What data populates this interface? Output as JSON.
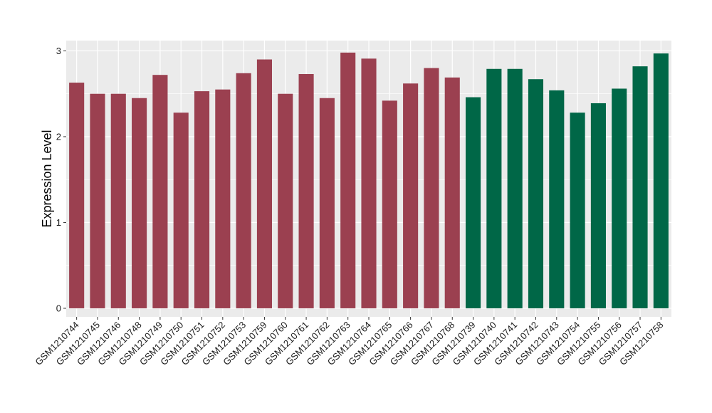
{
  "chart_data": {
    "type": "bar",
    "ylabel": "Expression Level",
    "xlabel": "",
    "ylim": [
      -0.1,
      3.12
    ],
    "yticks": [
      0,
      1,
      2,
      3
    ],
    "grid": true,
    "colors": {
      "group_a": "#9b4050",
      "group_b": "#006747",
      "panel": "#ebebeb",
      "grid": "#ffffff"
    },
    "categories": [
      "GSM1210744",
      "GSM1210745",
      "GSM1210746",
      "GSM1210748",
      "GSM1210749",
      "GSM1210750",
      "GSM1210751",
      "GSM1210752",
      "GSM1210753",
      "GSM1210759",
      "GSM1210760",
      "GSM1210761",
      "GSM1210762",
      "GSM1210763",
      "GSM1210764",
      "GSM1210765",
      "GSM1210766",
      "GSM1210767",
      "GSM1210768",
      "GSM1210739",
      "GSM1210740",
      "GSM1210741",
      "GSM1210742",
      "GSM1210743",
      "GSM1210754",
      "GSM1210755",
      "GSM1210756",
      "GSM1210757",
      "GSM1210758"
    ],
    "values": [
      2.63,
      2.5,
      2.5,
      2.45,
      2.72,
      2.28,
      2.53,
      2.55,
      2.74,
      2.9,
      2.5,
      2.73,
      2.45,
      2.98,
      2.91,
      2.42,
      2.62,
      2.8,
      2.69,
      2.46,
      2.79,
      2.79,
      2.67,
      2.54,
      2.28,
      2.39,
      2.56,
      2.82,
      2.97
    ],
    "groups": [
      "a",
      "a",
      "a",
      "a",
      "a",
      "a",
      "a",
      "a",
      "a",
      "a",
      "a",
      "a",
      "a",
      "a",
      "a",
      "a",
      "a",
      "a",
      "a",
      "b",
      "b",
      "b",
      "b",
      "b",
      "b",
      "b",
      "b",
      "b",
      "b"
    ]
  }
}
